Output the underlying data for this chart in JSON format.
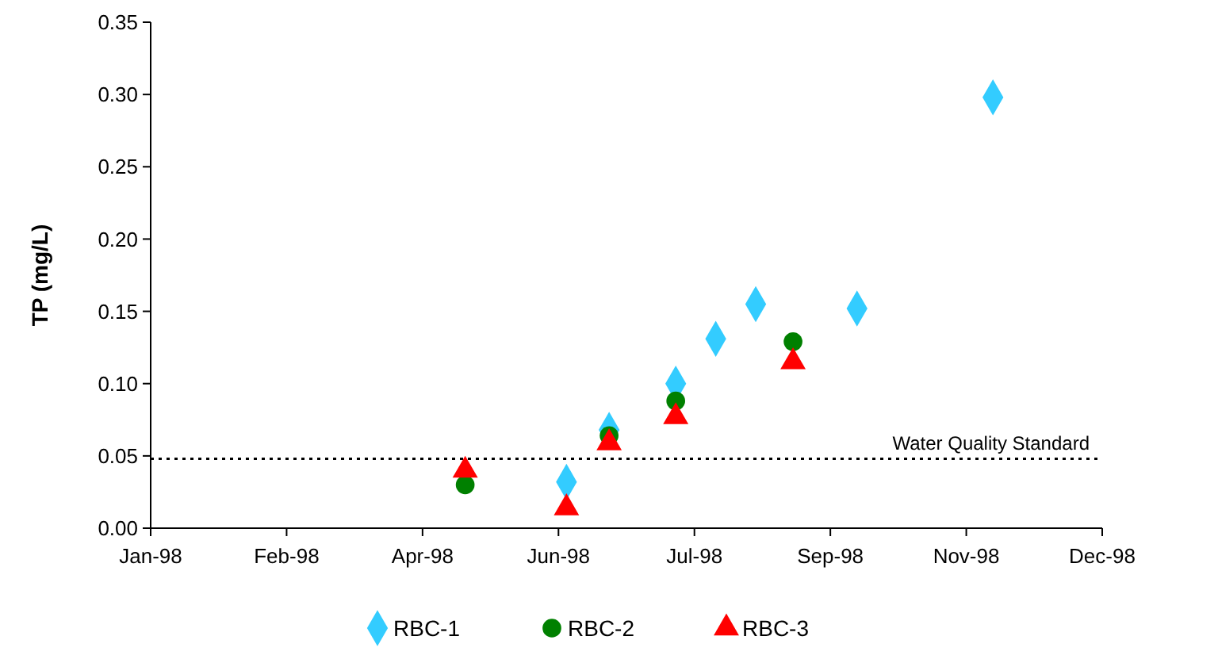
{
  "chart_data": {
    "type": "scatter",
    "ylabel": "TP (mg/L)",
    "xlim": [
      "1998-01-01",
      "1998-12-24"
    ],
    "xticks": [
      {
        "value": "1998-01-01",
        "label": "Jan-98"
      },
      {
        "value": "1998-02-21",
        "label": "Feb-98"
      },
      {
        "value": "1998-04-13",
        "label": "Apr-98"
      },
      {
        "value": "1998-06-03",
        "label": "Jun-98"
      },
      {
        "value": "1998-07-24",
        "label": "Jul-98"
      },
      {
        "value": "1998-09-13",
        "label": "Sep-98"
      },
      {
        "value": "1998-11-03",
        "label": "Nov-98"
      },
      {
        "value": "1998-12-24",
        "label": "Dec-98"
      }
    ],
    "ylim": [
      0,
      0.35
    ],
    "yticks": [
      {
        "value": 0,
        "label": "0.00"
      },
      {
        "value": 0.05,
        "label": "0.05"
      },
      {
        "value": 0.1,
        "label": "0.10"
      },
      {
        "value": 0.15,
        "label": "0.15"
      },
      {
        "value": 0.2,
        "label": "0.20"
      },
      {
        "value": 0.25,
        "label": "0.25"
      },
      {
        "value": 0.3,
        "label": "0.30"
      },
      {
        "value": 0.35,
        "label": "0.35"
      }
    ],
    "grid": false,
    "legend": "bottom",
    "ref_lines": [
      {
        "axis": "y",
        "value": 0.048,
        "label": "Water Quality Standard",
        "color": "#000000",
        "line_style": "dotted"
      }
    ],
    "series": [
      {
        "name": "RBC-1",
        "color": "#33ccff",
        "marker": "diamond",
        "x": [
          "1998-06-06",
          "1998-06-22",
          "1998-07-17",
          "1998-08-01",
          "1998-08-16",
          "1998-09-23",
          "1998-11-13"
        ],
        "values": [
          0.032,
          0.068,
          0.1,
          0.131,
          0.155,
          0.152,
          0.298
        ]
      },
      {
        "name": "RBC-2",
        "color": "#008000",
        "marker": "circle",
        "x": [
          "1998-04-29",
          "1998-06-22",
          "1998-07-17",
          "1998-08-30"
        ],
        "values": [
          0.03,
          0.064,
          0.088,
          0.129
        ]
      },
      {
        "name": "RBC-3",
        "color": "#ff0000",
        "marker": "triangle",
        "x": [
          "1998-04-29",
          "1998-06-06",
          "1998-06-22",
          "1998-07-17",
          "1998-08-30"
        ],
        "values": [
          0.04,
          0.014,
          0.059,
          0.077,
          0.115
        ]
      }
    ]
  }
}
